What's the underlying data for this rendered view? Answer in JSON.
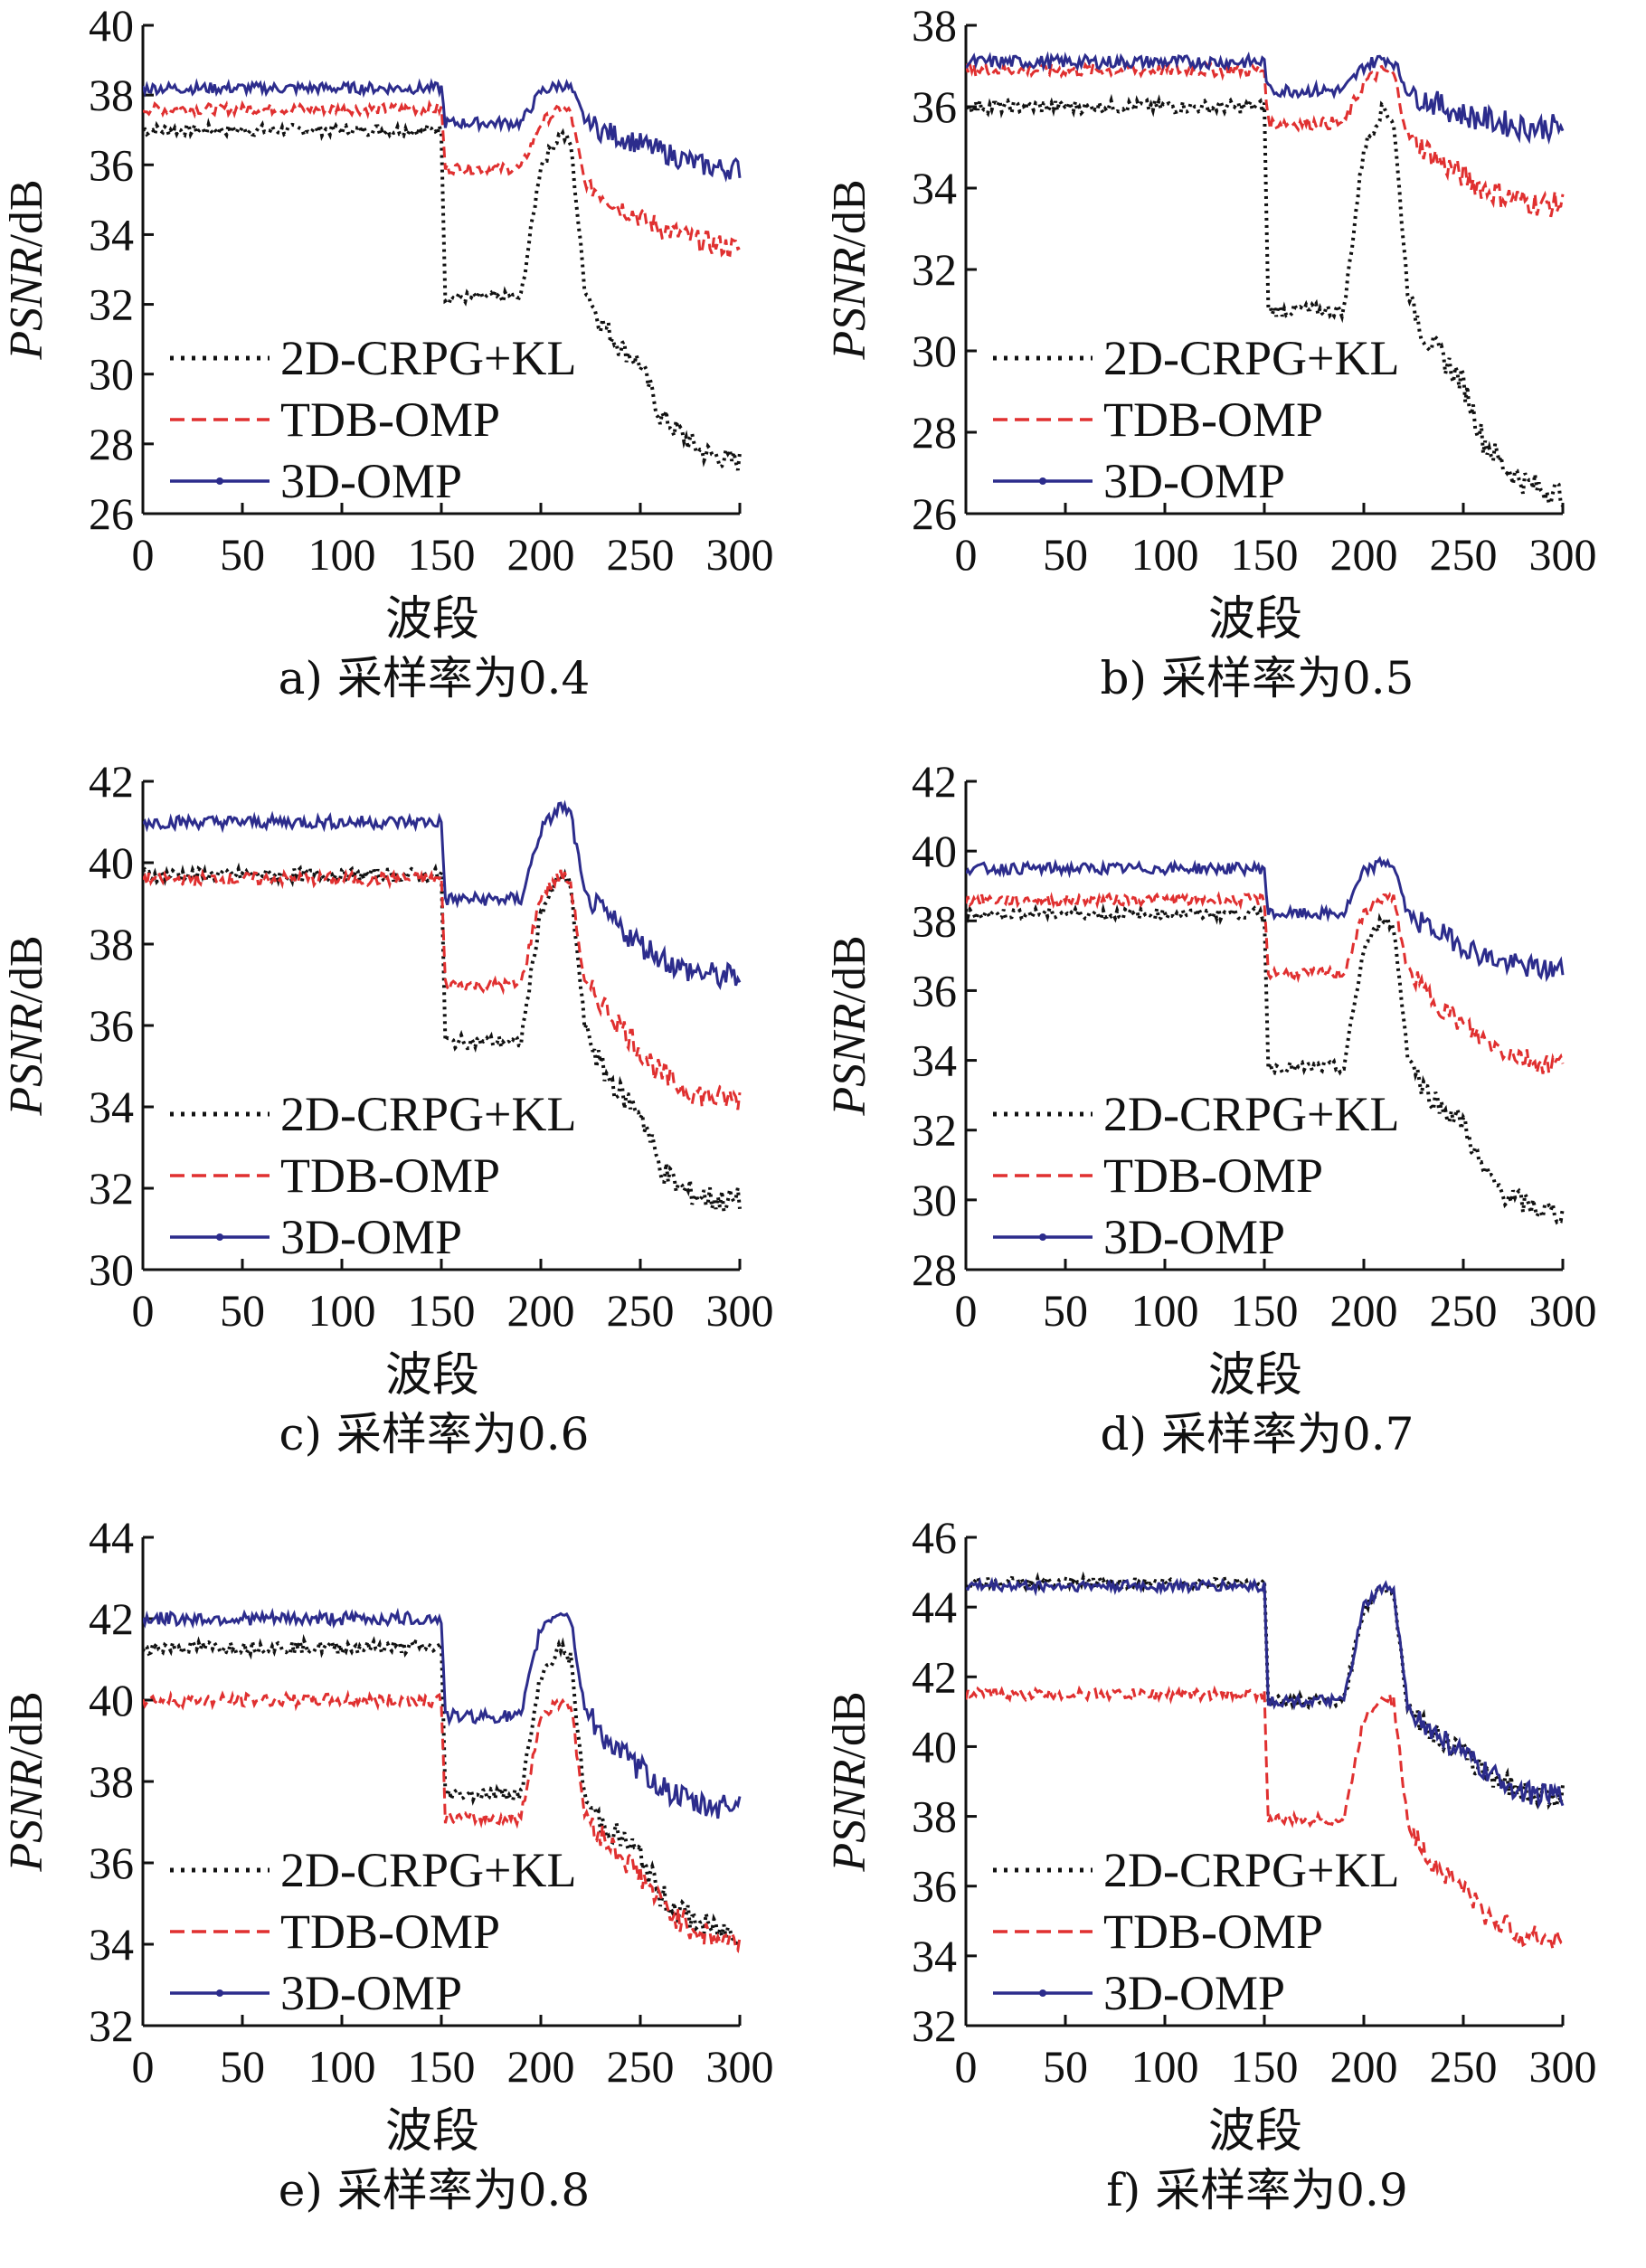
{
  "chart_data": [
    {
      "type": "line",
      "caption": "a) 采样率为0.4",
      "xlabel": "波段",
      "ylabel": {
        "italic": "PSNR",
        "rest": "/dB"
      },
      "xlim": [
        0,
        300
      ],
      "ylim": [
        26,
        40
      ],
      "xticks": [
        0,
        50,
        100,
        150,
        200,
        250,
        300
      ],
      "yticks": [
        26,
        28,
        30,
        32,
        34,
        36,
        38,
        40
      ],
      "grid": false,
      "legend_position": "bottom-left",
      "series": [
        {
          "name": "2D-CRPG+KL",
          "color": "#111111",
          "style": "dotted",
          "x": [
            0,
            150,
            152,
            190,
            200,
            210,
            215,
            222,
            230,
            240,
            250,
            260,
            270,
            280,
            290,
            300
          ],
          "y": [
            37.0,
            37.0,
            32.2,
            32.2,
            36.0,
            36.9,
            36.6,
            32.5,
            31.5,
            30.8,
            30.3,
            28.8,
            28.3,
            27.8,
            27.6,
            27.5
          ]
        },
        {
          "name": "TDB-OMP",
          "color": "#e03030",
          "style": "dashed",
          "x": [
            0,
            150,
            152,
            190,
            200,
            210,
            215,
            222,
            230,
            240,
            250,
            260,
            270,
            280,
            290,
            300
          ],
          "y": [
            37.6,
            37.6,
            35.9,
            35.9,
            37.2,
            37.6,
            37.5,
            35.5,
            35.2,
            34.8,
            34.5,
            34.2,
            34.0,
            33.8,
            33.7,
            33.6
          ]
        },
        {
          "name": "3D-OMP",
          "color": "#2c2c8c",
          "style": "solid",
          "x": [
            0,
            150,
            152,
            190,
            200,
            210,
            215,
            222,
            230,
            240,
            250,
            260,
            270,
            280,
            290,
            300
          ],
          "y": [
            38.2,
            38.2,
            37.2,
            37.2,
            38.1,
            38.3,
            38.2,
            37.3,
            37.0,
            36.8,
            36.6,
            36.4,
            36.2,
            36.0,
            35.9,
            35.9
          ]
        }
      ]
    },
    {
      "type": "line",
      "caption": "b) 采样率为0.5",
      "xlabel": "波段",
      "ylabel": {
        "italic": "PSNR",
        "rest": "/dB"
      },
      "xlim": [
        0,
        300
      ],
      "ylim": [
        26,
        38
      ],
      "xticks": [
        0,
        50,
        100,
        150,
        200,
        250,
        300
      ],
      "yticks": [
        26,
        28,
        30,
        32,
        34,
        36,
        38
      ],
      "grid": false,
      "legend_position": "bottom-left",
      "series": [
        {
          "name": "2D-CRPG+KL",
          "color": "#111111",
          "style": "dotted",
          "x": [
            0,
            150,
            152,
            190,
            200,
            210,
            215,
            222,
            230,
            240,
            250,
            260,
            270,
            280,
            290,
            300
          ],
          "y": [
            36.0,
            36.0,
            31.0,
            31.0,
            35.0,
            36.0,
            35.6,
            31.5,
            30.4,
            29.8,
            29.2,
            27.8,
            27.2,
            26.8,
            26.6,
            26.5
          ]
        },
        {
          "name": "TDB-OMP",
          "color": "#e03030",
          "style": "dashed",
          "x": [
            0,
            150,
            152,
            190,
            200,
            210,
            215,
            222,
            230,
            240,
            250,
            260,
            270,
            280,
            290,
            300
          ],
          "y": [
            36.9,
            36.9,
            35.6,
            35.6,
            36.6,
            36.9,
            36.8,
            35.3,
            35.0,
            34.6,
            34.3,
            34.0,
            33.8,
            33.7,
            33.6,
            33.6
          ]
        },
        {
          "name": "3D-OMP",
          "color": "#2c2c8c",
          "style": "solid",
          "x": [
            0,
            150,
            152,
            190,
            200,
            210,
            215,
            222,
            230,
            240,
            250,
            260,
            270,
            280,
            290,
            300
          ],
          "y": [
            37.1,
            37.1,
            36.4,
            36.4,
            37.0,
            37.2,
            37.1,
            36.4,
            36.2,
            36.0,
            35.8,
            35.7,
            35.6,
            35.5,
            35.5,
            35.5
          ]
        }
      ]
    },
    {
      "type": "line",
      "caption": "c) 采样率为0.6",
      "xlabel": "波段",
      "ylabel": {
        "italic": "PSNR",
        "rest": "/dB"
      },
      "xlim": [
        0,
        300
      ],
      "ylim": [
        30,
        42
      ],
      "xticks": [
        0,
        50,
        100,
        150,
        200,
        250,
        300
      ],
      "yticks": [
        30,
        32,
        34,
        36,
        38,
        40,
        42
      ],
      "grid": false,
      "legend_position": "bottom-left",
      "series": [
        {
          "name": "2D-CRPG+KL",
          "color": "#111111",
          "style": "dotted",
          "x": [
            0,
            150,
            152,
            190,
            200,
            210,
            215,
            222,
            230,
            240,
            250,
            260,
            270,
            280,
            290,
            300
          ],
          "y": [
            39.7,
            39.7,
            35.6,
            35.6,
            38.8,
            39.7,
            39.4,
            36.0,
            35.0,
            34.3,
            33.9,
            32.5,
            32.0,
            31.8,
            31.7,
            31.7
          ]
        },
        {
          "name": "TDB-OMP",
          "color": "#e03030",
          "style": "dashed",
          "x": [
            0,
            150,
            152,
            190,
            200,
            210,
            215,
            222,
            230,
            240,
            250,
            260,
            270,
            280,
            290,
            300
          ],
          "y": [
            39.6,
            39.6,
            37.0,
            37.0,
            39.2,
            39.7,
            39.5,
            37.0,
            36.6,
            36.0,
            35.4,
            34.8,
            34.5,
            34.3,
            34.2,
            34.2
          ]
        },
        {
          "name": "3D-OMP",
          "color": "#2c2c8c",
          "style": "solid",
          "x": [
            0,
            150,
            152,
            190,
            200,
            210,
            215,
            222,
            230,
            240,
            250,
            260,
            270,
            280,
            290,
            300
          ],
          "y": [
            41.0,
            41.0,
            39.1,
            39.1,
            40.8,
            41.4,
            41.2,
            39.2,
            38.8,
            38.4,
            38.0,
            37.7,
            37.4,
            37.3,
            37.2,
            37.2
          ]
        }
      ]
    },
    {
      "type": "line",
      "caption": "d) 采样率为0.7",
      "xlabel": "波段",
      "ylabel": {
        "italic": "PSNR",
        "rest": "/dB"
      },
      "xlim": [
        0,
        300
      ],
      "ylim": [
        28,
        42
      ],
      "xticks": [
        0,
        50,
        100,
        150,
        200,
        250,
        300
      ],
      "yticks": [
        28,
        30,
        32,
        34,
        36,
        38,
        40,
        42
      ],
      "grid": false,
      "legend_position": "bottom-left",
      "series": [
        {
          "name": "2D-CRPG+KL",
          "color": "#111111",
          "style": "dotted",
          "x": [
            0,
            150,
            152,
            190,
            200,
            210,
            215,
            222,
            230,
            240,
            250,
            260,
            270,
            280,
            290,
            300
          ],
          "y": [
            38.2,
            38.2,
            33.8,
            33.8,
            37.2,
            38.1,
            37.8,
            34.2,
            33.2,
            32.6,
            32.2,
            30.8,
            30.2,
            29.9,
            29.7,
            29.6
          ]
        },
        {
          "name": "TDB-OMP",
          "color": "#e03030",
          "style": "dashed",
          "x": [
            0,
            150,
            152,
            190,
            200,
            210,
            215,
            222,
            230,
            240,
            250,
            260,
            270,
            280,
            290,
            300
          ],
          "y": [
            38.6,
            38.6,
            36.5,
            36.5,
            38.2,
            38.7,
            38.6,
            36.6,
            36.0,
            35.5,
            35.0,
            34.6,
            34.3,
            34.1,
            33.9,
            33.9
          ]
        },
        {
          "name": "3D-OMP",
          "color": "#2c2c8c",
          "style": "solid",
          "x": [
            0,
            150,
            152,
            190,
            200,
            210,
            215,
            222,
            230,
            240,
            250,
            260,
            270,
            280,
            290,
            300
          ],
          "y": [
            39.5,
            39.5,
            38.2,
            38.2,
            39.4,
            39.7,
            39.6,
            38.2,
            37.9,
            37.6,
            37.3,
            37.0,
            36.8,
            36.7,
            36.6,
            36.6
          ]
        }
      ]
    },
    {
      "type": "line",
      "caption": "e) 采样率为0.8",
      "xlabel": "波段",
      "ylabel": {
        "italic": "PSNR",
        "rest": "/dB"
      },
      "xlim": [
        0,
        300
      ],
      "ylim": [
        32,
        44
      ],
      "xticks": [
        0,
        50,
        100,
        150,
        200,
        250,
        300
      ],
      "yticks": [
        32,
        34,
        36,
        38,
        40,
        42,
        44
      ],
      "grid": false,
      "legend_position": "bottom-left",
      "series": [
        {
          "name": "2D-CRPG+KL",
          "color": "#111111",
          "style": "dotted",
          "x": [
            0,
            150,
            152,
            190,
            200,
            210,
            215,
            222,
            230,
            240,
            250,
            260,
            270,
            280,
            290,
            300
          ],
          "y": [
            41.3,
            41.3,
            37.7,
            37.7,
            40.6,
            41.3,
            41.0,
            37.6,
            37.0,
            36.6,
            36.2,
            35.2,
            34.8,
            34.5,
            34.3,
            34.3
          ]
        },
        {
          "name": "TDB-OMP",
          "color": "#e03030",
          "style": "dashed",
          "x": [
            0,
            150,
            152,
            190,
            200,
            210,
            215,
            222,
            230,
            240,
            250,
            260,
            270,
            280,
            290,
            300
          ],
          "y": [
            40.0,
            40.0,
            37.1,
            37.1,
            39.6,
            40.0,
            39.9,
            37.2,
            36.7,
            36.2,
            35.7,
            35.0,
            34.6,
            34.3,
            34.1,
            34.1
          ]
        },
        {
          "name": "3D-OMP",
          "color": "#2c2c8c",
          "style": "solid",
          "x": [
            0,
            150,
            152,
            190,
            200,
            210,
            215,
            222,
            230,
            240,
            250,
            260,
            270,
            280,
            290,
            300
          ],
          "y": [
            42.0,
            42.0,
            39.6,
            39.6,
            41.8,
            42.2,
            42.0,
            39.8,
            39.2,
            38.7,
            38.3,
            37.9,
            37.6,
            37.4,
            37.4,
            37.5
          ]
        }
      ]
    },
    {
      "type": "line",
      "caption": "f) 采样率为0.9",
      "xlabel": "波段",
      "ylabel": {
        "italic": "PSNR",
        "rest": "/dB"
      },
      "xlim": [
        0,
        300
      ],
      "ylim": [
        32,
        46
      ],
      "xticks": [
        0,
        50,
        100,
        150,
        200,
        250,
        300
      ],
      "yticks": [
        32,
        34,
        36,
        38,
        40,
        42,
        44,
        46
      ],
      "grid": false,
      "legend_position": "bottom-left",
      "series": [
        {
          "name": "2D-CRPG+KL",
          "color": "#111111",
          "style": "dotted",
          "x": [
            0,
            150,
            152,
            190,
            200,
            210,
            215,
            222,
            230,
            240,
            250,
            260,
            270,
            280,
            290,
            300
          ],
          "y": [
            44.7,
            44.7,
            41.3,
            41.3,
            44.0,
            44.6,
            44.4,
            41.2,
            40.6,
            40.2,
            39.8,
            39.3,
            39.0,
            38.7,
            38.6,
            38.6
          ]
        },
        {
          "name": "TDB-OMP",
          "color": "#e03030",
          "style": "dashed",
          "x": [
            0,
            150,
            152,
            190,
            200,
            210,
            215,
            222,
            230,
            240,
            250,
            260,
            270,
            280,
            290,
            300
          ],
          "y": [
            41.5,
            41.5,
            37.9,
            37.9,
            40.8,
            41.5,
            41.3,
            37.8,
            37.0,
            36.4,
            36.0,
            35.2,
            34.9,
            34.6,
            34.5,
            34.5
          ]
        },
        {
          "name": "3D-OMP",
          "color": "#2c2c8c",
          "style": "solid",
          "x": [
            0,
            150,
            152,
            190,
            200,
            210,
            215,
            222,
            230,
            240,
            250,
            260,
            270,
            280,
            290,
            300
          ],
          "y": [
            44.6,
            44.6,
            41.3,
            41.3,
            44.0,
            44.6,
            44.4,
            41.2,
            40.6,
            40.2,
            39.8,
            39.3,
            39.0,
            38.7,
            38.6,
            38.6
          ]
        }
      ]
    }
  ]
}
